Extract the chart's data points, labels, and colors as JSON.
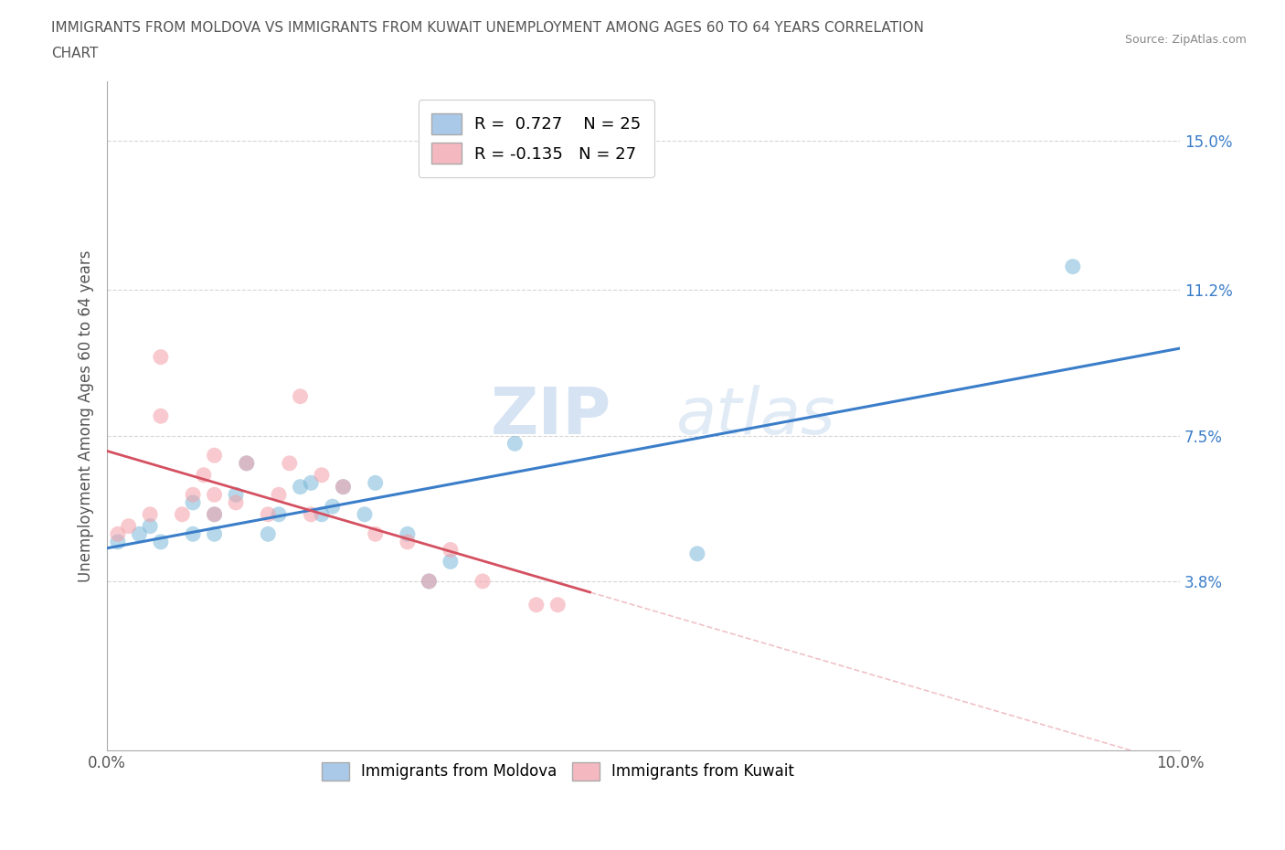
{
  "title_line1": "IMMIGRANTS FROM MOLDOVA VS IMMIGRANTS FROM KUWAIT UNEMPLOYMENT AMONG AGES 60 TO 64 YEARS CORRELATION",
  "title_line2": "CHART",
  "source": "Source: ZipAtlas.com",
  "ylabel": "Unemployment Among Ages 60 to 64 years",
  "xlim": [
    0,
    0.1
  ],
  "ylim": [
    -0.005,
    0.165
  ],
  "xticks": [
    0.0,
    0.02,
    0.04,
    0.06,
    0.08,
    0.1
  ],
  "xticklabels": [
    "0.0%",
    "",
    "",
    "",
    "",
    "10.0%"
  ],
  "yticks": [
    0.038,
    0.075,
    0.112,
    0.15
  ],
  "yticklabels": [
    "3.8%",
    "7.5%",
    "11.2%",
    "15.0%"
  ],
  "moldova_color": "#7ab8d9",
  "kuwait_color": "#f4a0a8",
  "moldova_line_color": "#3a7dc9",
  "kuwait_line_color": "#d45060",
  "R_moldova": 0.727,
  "N_moldova": 25,
  "R_kuwait": -0.135,
  "N_kuwait": 27,
  "moldova_x": [
    0.001,
    0.003,
    0.004,
    0.005,
    0.008,
    0.008,
    0.01,
    0.01,
    0.012,
    0.013,
    0.015,
    0.016,
    0.018,
    0.019,
    0.02,
    0.021,
    0.022,
    0.024,
    0.025,
    0.028,
    0.03,
    0.032,
    0.038,
    0.055,
    0.09
  ],
  "moldova_y": [
    0.048,
    0.05,
    0.052,
    0.048,
    0.05,
    0.058,
    0.05,
    0.055,
    0.06,
    0.068,
    0.05,
    0.055,
    0.062,
    0.063,
    0.055,
    0.057,
    0.062,
    0.055,
    0.063,
    0.05,
    0.038,
    0.043,
    0.073,
    0.045,
    0.118
  ],
  "kuwait_x": [
    0.001,
    0.002,
    0.004,
    0.005,
    0.005,
    0.007,
    0.008,
    0.009,
    0.01,
    0.01,
    0.01,
    0.012,
    0.013,
    0.015,
    0.016,
    0.017,
    0.018,
    0.019,
    0.02,
    0.022,
    0.025,
    0.028,
    0.03,
    0.032,
    0.035,
    0.04,
    0.042
  ],
  "kuwait_y": [
    0.05,
    0.052,
    0.055,
    0.08,
    0.095,
    0.055,
    0.06,
    0.065,
    0.055,
    0.06,
    0.07,
    0.058,
    0.068,
    0.055,
    0.06,
    0.068,
    0.085,
    0.055,
    0.065,
    0.062,
    0.05,
    0.048,
    0.038,
    0.046,
    0.038,
    0.032,
    0.032
  ],
  "watermark_zip": "ZIP",
  "watermark_atlas": "atlas",
  "background_color": "#ffffff",
  "legend_box_color_moldova": "#aac8e8",
  "legend_box_color_kuwait": "#f4b8c0",
  "ylabel_color": "#555555",
  "ytick_color": "#3a7dc9",
  "xtick_color": "#555555",
  "title_color": "#555555",
  "source_color": "#888888"
}
